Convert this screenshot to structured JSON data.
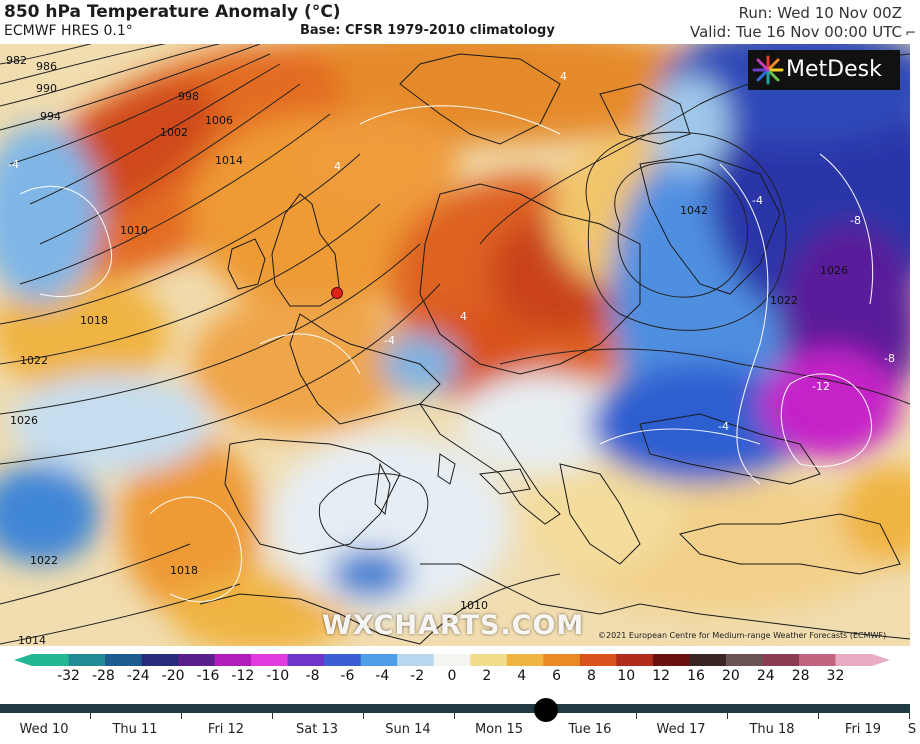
{
  "header": {
    "title": "850 hPa Temperature Anomaly (°C)",
    "model": "ECMWF HRES 0.1°",
    "base": "Base: CFSR 1979-2010 climatology",
    "run": "Run: Wed 10 Nov 00Z",
    "valid": "Valid: Tue 16 Nov 00:00 UTC"
  },
  "logo": {
    "name": "MetDesk"
  },
  "watermark": "WXCHARTS.COM",
  "copyright": "©2021 European Centre for Medium-range Weather Forecasts (ECMWF)",
  "map_labels": {
    "isobars": [
      "982",
      "986",
      "990",
      "994",
      "998",
      "1002",
      "1006",
      "1010",
      "1014",
      "1018",
      "1022",
      "1026",
      "1042",
      "1018",
      "1022",
      "1014",
      "1010",
      "1022",
      "1026"
    ],
    "anomalies": [
      "-4",
      "-4",
      "4",
      "4",
      "-8",
      "-8",
      "-12",
      "-4",
      "4",
      "-4"
    ]
  },
  "colour_scale": {
    "labels": [
      "-32",
      "-28",
      "-24",
      "-20",
      "-16",
      "-12",
      "-10",
      "-8",
      "-6",
      "-4",
      "-2",
      "0",
      "2",
      "4",
      "6",
      "8",
      "10",
      "12",
      "16",
      "20",
      "24",
      "28",
      "32"
    ],
    "colors": [
      "#22b894",
      "#1f8c93",
      "#1d5c8f",
      "#2a2a7a",
      "#5b1f8c",
      "#b11db8",
      "#e23ce0",
      "#6f34c8",
      "#3c5dd4",
      "#4d9ee6",
      "#b8d8f0",
      "#f5f5f0",
      "#f2dd8a",
      "#f0b442",
      "#ea8a24",
      "#d9531c",
      "#b12c1a",
      "#6a1210",
      "#3a2424",
      "#6a5252",
      "#8c3c52",
      "#c2647e",
      "#e8aac4"
    ]
  },
  "timeline": {
    "days": [
      "Wed 10",
      "Thu 11",
      "Fri 12",
      "Sat 13",
      "Sun 14",
      "Mon 15",
      "Tue 16",
      "Wed 17",
      "Thu 18",
      "Fri 19",
      "S"
    ],
    "selected_position": 0.6
  }
}
